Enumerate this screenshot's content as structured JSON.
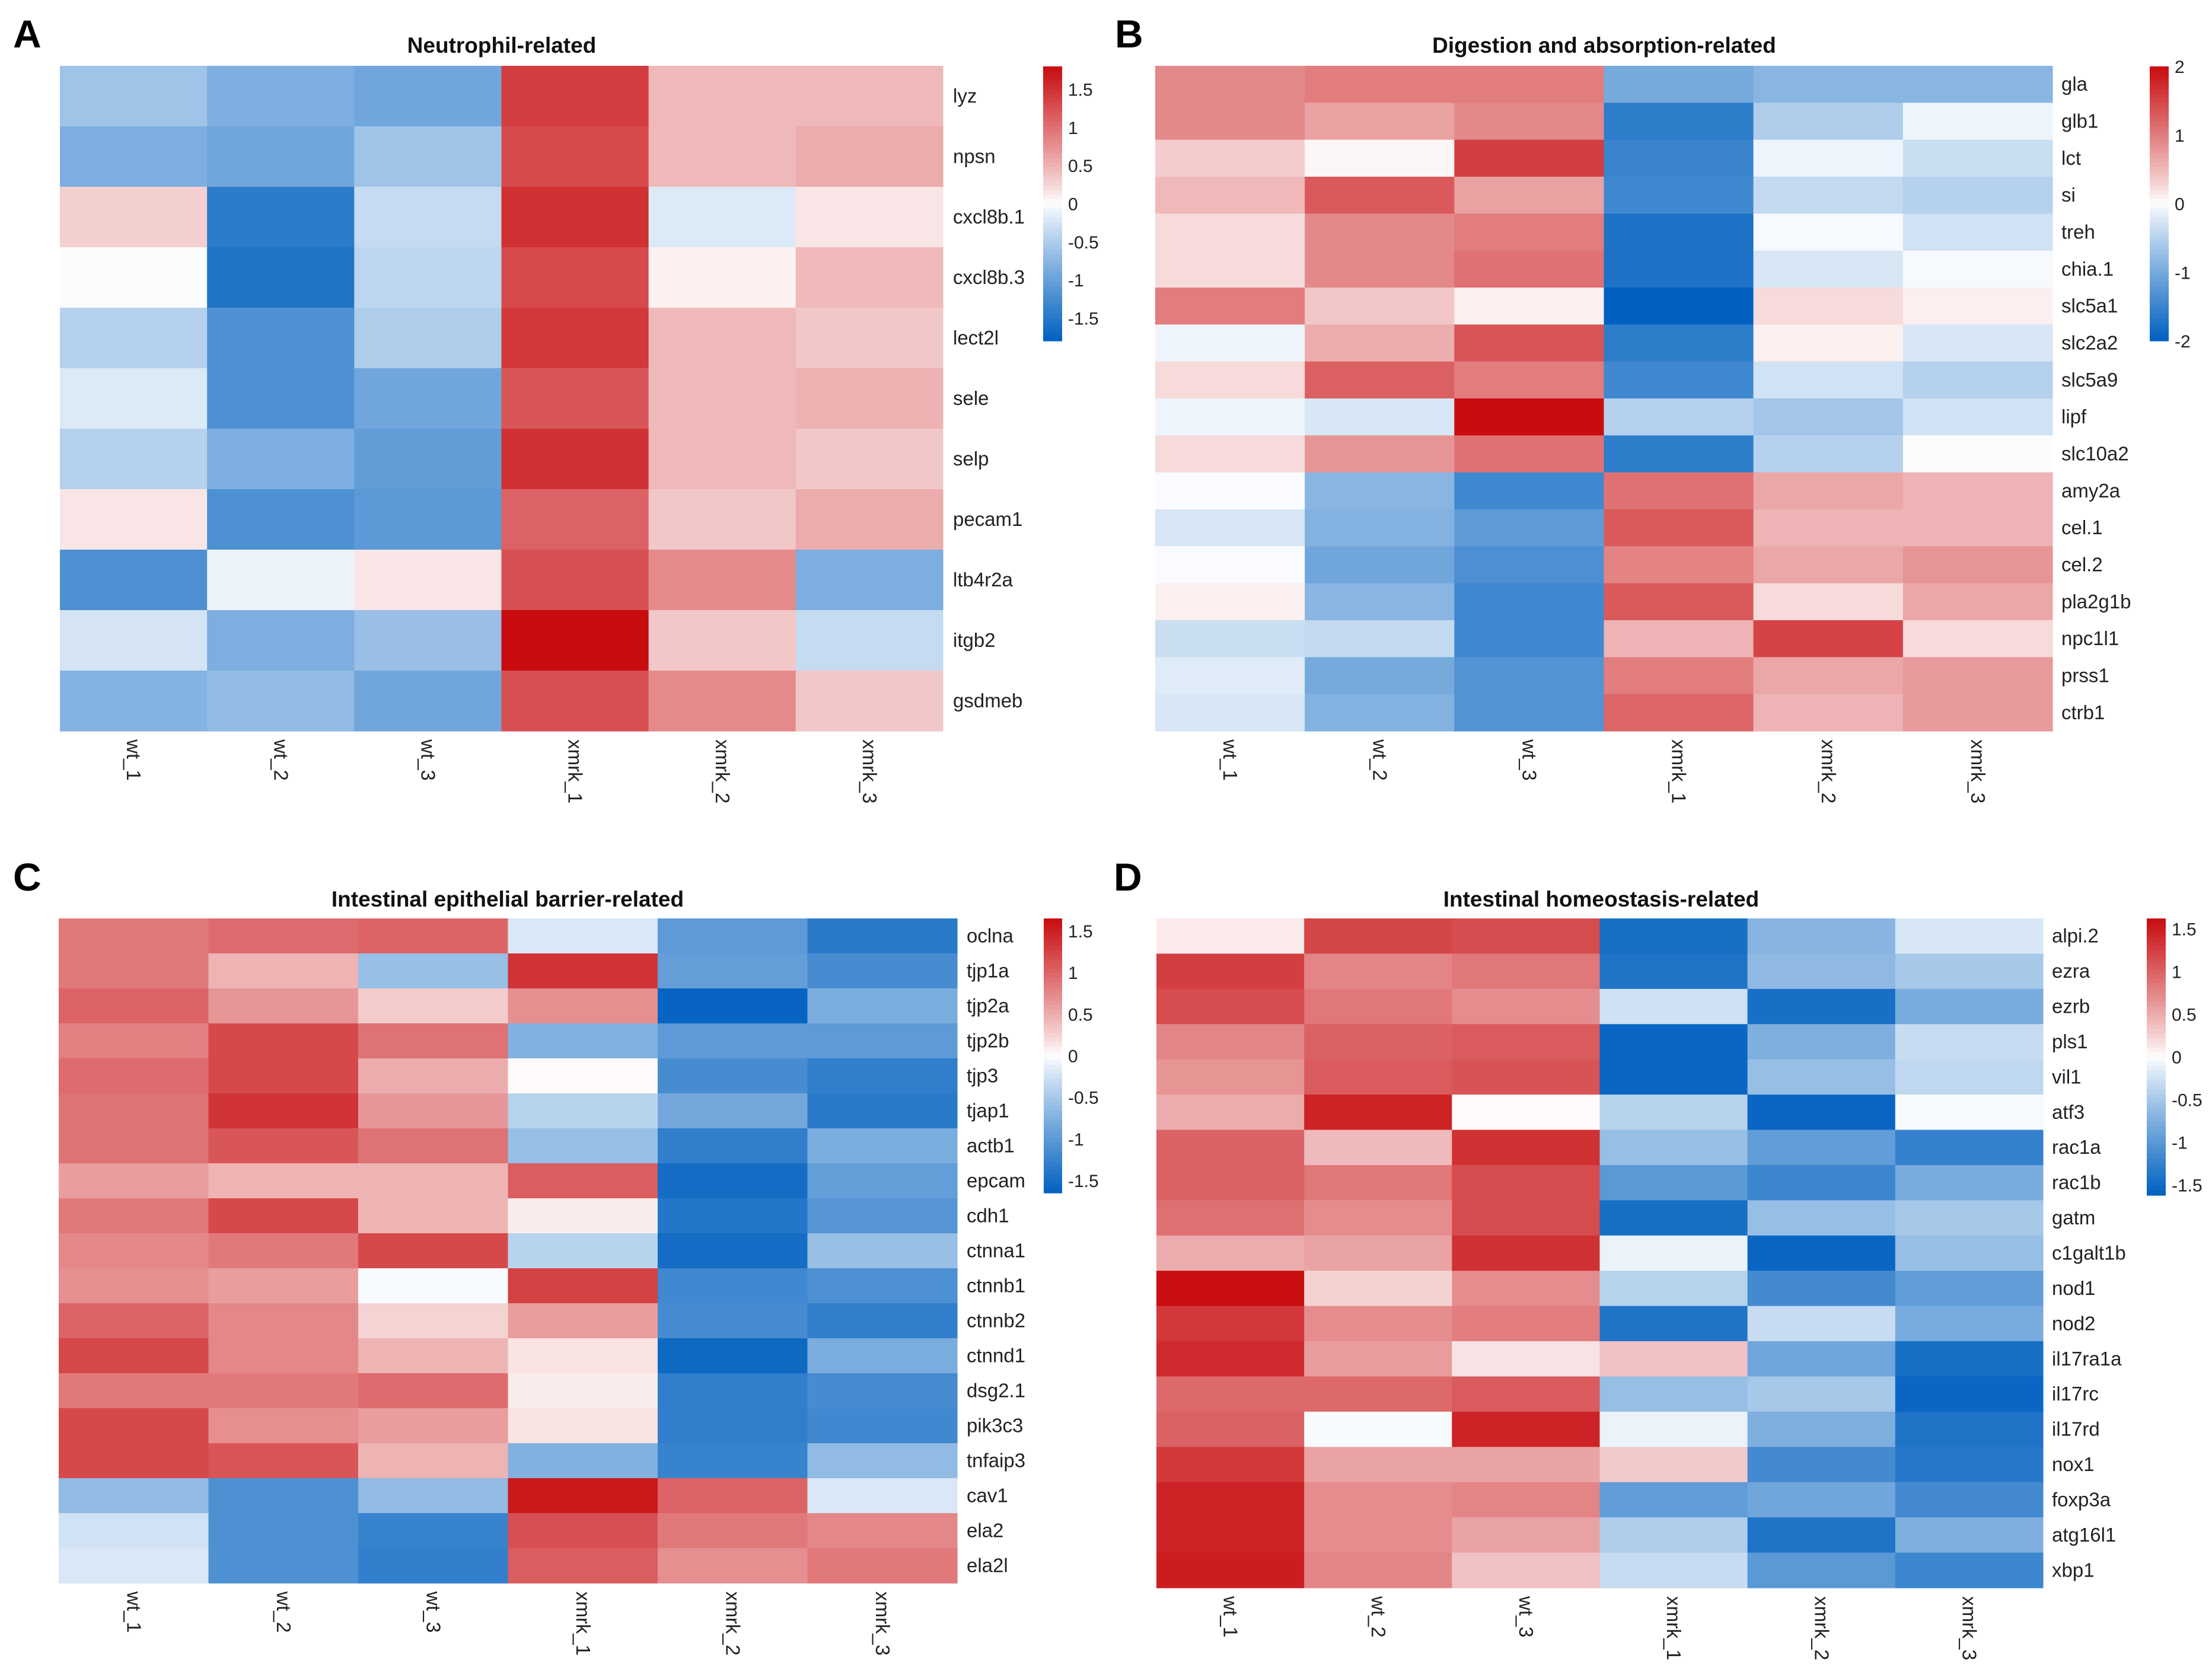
{
  "figure": {
    "panels": [
      {
        "letter": "A",
        "title": "Neutrophil-related"
      },
      {
        "letter": "B",
        "title": "Digestion and absorption-related"
      },
      {
        "letter": "C",
        "title": "Intestinal epithelial barrier-related"
      },
      {
        "letter": "D",
        "title": "Intestinal homeostasis-related"
      }
    ]
  },
  "chart_data": [
    {
      "type": "heatmap",
      "panel": "A",
      "title": "Neutrophil-related",
      "columns": [
        "wt_1",
        "wt_2",
        "wt_3",
        "xmrk_1",
        "xmrk_2",
        "xmrk_3"
      ],
      "rows": [
        "lyz",
        "npsn",
        "cxcl8b.1",
        "cxcl8b.3",
        "lect2l",
        "sele",
        "selp",
        "pecam1",
        "ltb4r2a",
        "itgb2",
        "gsdmeb"
      ],
      "values": [
        [
          -0.6,
          -0.85,
          -0.95,
          1.4,
          0.45,
          0.45
        ],
        [
          -0.85,
          -0.95,
          -0.6,
          1.3,
          0.45,
          0.55
        ],
        [
          0.3,
          -1.45,
          -0.35,
          1.5,
          -0.2,
          0.15
        ],
        [
          -0.02,
          -1.55,
          -0.4,
          1.3,
          0.08,
          0.45
        ],
        [
          -0.45,
          -1.2,
          -0.5,
          1.45,
          0.45,
          0.35
        ],
        [
          -0.2,
          -1.2,
          -0.95,
          1.2,
          0.45,
          0.5
        ],
        [
          -0.45,
          -0.85,
          -1.05,
          1.5,
          0.45,
          0.35
        ],
        [
          0.15,
          -1.2,
          -1.1,
          1.1,
          0.35,
          0.55
        ],
        [
          -1.2,
          -0.1,
          0.15,
          1.25,
          0.8,
          -0.85
        ],
        [
          -0.25,
          -0.85,
          -0.65,
          1.8,
          0.35,
          -0.35
        ],
        [
          -0.8,
          -0.7,
          -0.95,
          1.25,
          0.8,
          0.35
        ]
      ],
      "color_range": [
        -1.8,
        1.8
      ],
      "colorbar_ticks": [
        1.5,
        1,
        0.5,
        0,
        -0.5,
        -1,
        -1.5
      ],
      "colorbar_tick_labels": [
        "1.5",
        "1",
        "0.5",
        "0",
        "-0.5",
        "-1",
        "-1.5"
      ],
      "colors": {
        "low": "#0060c0",
        "mid": "#ffffff",
        "high": "#c80c0f"
      }
    },
    {
      "type": "heatmap",
      "panel": "B",
      "title": "Digestion and absorption-related",
      "columns": [
        "wt_1",
        "wt_2",
        "wt_3",
        "xmrk_1",
        "xmrk_2",
        "xmrk_3"
      ],
      "rows": [
        "gla",
        "glb1",
        "lct",
        "si",
        "treh",
        "chia.1",
        "slc5a1",
        "slc2a2",
        "slc5a9",
        "lipf",
        "slc10a2",
        "amy2a",
        "cel.1",
        "cel.2",
        "pla2g1b",
        "npc1l1",
        "prss1",
        "ctrb1"
      ],
      "values": [
        [
          0.9,
          1.0,
          1.0,
          -1.0,
          -0.85,
          -0.85
        ],
        [
          0.9,
          0.7,
          0.9,
          -1.6,
          -0.55,
          -0.1
        ],
        [
          0.35,
          0.05,
          1.55,
          -1.5,
          -0.1,
          -0.35
        ],
        [
          0.5,
          1.3,
          0.7,
          -1.45,
          -0.4,
          -0.5
        ],
        [
          0.25,
          0.9,
          1.0,
          -1.75,
          -0.05,
          -0.3
        ],
        [
          0.25,
          0.9,
          1.1,
          -1.75,
          -0.25,
          -0.05
        ],
        [
          1.0,
          0.4,
          0.1,
          -2.0,
          0.25,
          0.1
        ],
        [
          -0.1,
          0.6,
          1.35,
          -1.6,
          0.1,
          -0.25
        ],
        [
          0.25,
          1.25,
          1.0,
          -1.45,
          -0.3,
          -0.5
        ],
        [
          -0.1,
          -0.25,
          2.0,
          -0.5,
          -0.65,
          -0.3
        ],
        [
          0.25,
          0.8,
          1.1,
          -1.6,
          -0.5,
          0.02
        ],
        [
          -0.03,
          -0.85,
          -1.45,
          1.1,
          0.65,
          0.55
        ],
        [
          -0.25,
          -0.9,
          -1.2,
          1.3,
          0.55,
          0.55
        ],
        [
          -0.03,
          -1.05,
          -1.35,
          0.95,
          0.65,
          0.8
        ],
        [
          0.1,
          -0.85,
          -1.45,
          1.3,
          0.25,
          0.65
        ],
        [
          -0.35,
          -0.4,
          -1.45,
          0.55,
          1.5,
          0.25
        ],
        [
          -0.2,
          -1.0,
          -1.3,
          1.0,
          0.65,
          0.75
        ],
        [
          -0.25,
          -0.9,
          -1.3,
          1.2,
          0.55,
          0.75
        ]
      ],
      "color_range": [
        -2,
        2
      ],
      "colorbar_ticks": [
        2,
        1,
        0,
        -1,
        -2
      ],
      "colorbar_tick_labels": [
        "2",
        "1",
        "0",
        "-1",
        "-2"
      ],
      "colors": {
        "low": "#0060c0",
        "mid": "#ffffff",
        "high": "#c80c0f"
      }
    },
    {
      "type": "heatmap",
      "panel": "C",
      "title": "Intestinal epithelial barrier-related",
      "columns": [
        "wt_1",
        "wt_2",
        "wt_3",
        "xmrk_1",
        "xmrk_2",
        "xmrk_3"
      ],
      "rows": [
        "oclna",
        "tjp1a",
        "tjp2a",
        "tjp2b",
        "tjp3",
        "tjap1",
        "actb1",
        "epcam",
        "cdh1",
        "ctnna1",
        "ctnnb1",
        "ctnnb2",
        "ctnnd1",
        "dsg2.1",
        "pik3c3",
        "tnfaip3",
        "cav1",
        "ela2",
        "ela2l"
      ],
      "values": [
        [
          0.85,
          0.95,
          1.0,
          -0.2,
          -1.0,
          -1.35
        ],
        [
          0.85,
          0.45,
          -0.6,
          1.35,
          -0.95,
          -1.15
        ],
        [
          1.0,
          0.65,
          0.3,
          0.7,
          -1.6,
          -0.8
        ],
        [
          0.8,
          1.2,
          0.9,
          -0.75,
          -1.0,
          -1.0
        ],
        [
          0.95,
          1.2,
          0.5,
          0.02,
          -1.15,
          -1.3
        ],
        [
          0.9,
          1.35,
          0.65,
          -0.4,
          -0.85,
          -1.35
        ],
        [
          0.9,
          1.1,
          0.9,
          -0.6,
          -1.3,
          -0.8
        ],
        [
          0.6,
          0.45,
          0.45,
          1.05,
          -1.5,
          -0.95
        ],
        [
          0.85,
          1.2,
          0.45,
          0.1,
          -1.4,
          -1.05
        ],
        [
          0.75,
          0.85,
          1.2,
          -0.4,
          -1.5,
          -0.6
        ],
        [
          0.7,
          0.6,
          -0.03,
          1.25,
          -1.2,
          -1.1
        ],
        [
          1.0,
          0.75,
          0.25,
          0.6,
          -1.15,
          -1.3
        ],
        [
          1.2,
          0.75,
          0.45,
          0.15,
          -1.55,
          -0.8
        ],
        [
          0.85,
          0.85,
          0.95,
          0.1,
          -1.3,
          -1.15
        ],
        [
          1.2,
          0.7,
          0.6,
          0.15,
          -1.3,
          -1.2
        ],
        [
          1.2,
          1.1,
          0.45,
          -0.75,
          -1.25,
          -0.65
        ],
        [
          -0.65,
          -1.1,
          -0.65,
          1.55,
          1.0,
          -0.2
        ],
        [
          -0.25,
          -1.1,
          -1.25,
          1.15,
          0.85,
          0.75
        ],
        [
          -0.2,
          -1.1,
          -1.3,
          1.05,
          0.7,
          0.85
        ]
      ],
      "color_range": [
        -1.65,
        1.65
      ],
      "colorbar_ticks": [
        1.5,
        1,
        0.5,
        0,
        -0.5,
        -1,
        -1.5
      ],
      "colorbar_tick_labels": [
        "1.5",
        "1",
        "0.5",
        "0",
        "-0.5",
        "-1",
        "-1.5"
      ],
      "colors": {
        "low": "#0060c0",
        "mid": "#ffffff",
        "high": "#c80c0f"
      }
    },
    {
      "type": "heatmap",
      "panel": "D",
      "title": "Intestinal homeostasis-related",
      "columns": [
        "wt_1",
        "wt_2",
        "wt_3",
        "xmrk_1",
        "xmrk_2",
        "xmrk_3"
      ],
      "rows": [
        "alpi.2",
        "ezra",
        "ezrb",
        "pls1",
        "vil1",
        "atf3",
        "rac1a",
        "rac1b",
        "gatm",
        "c1galt1b",
        "nod1",
        "nod2",
        "il17ra1a",
        "il17rc",
        "il17rd",
        "nox1",
        "foxp3a",
        "atg16l1",
        "xbp1"
      ],
      "values": [
        [
          0.1,
          1.2,
          1.15,
          -1.45,
          -0.7,
          -0.2
        ],
        [
          1.25,
          0.75,
          0.85,
          -1.4,
          -0.65,
          -0.5
        ],
        [
          1.15,
          0.85,
          0.7,
          -0.25,
          -1.45,
          -0.8
        ],
        [
          0.75,
          1.0,
          1.05,
          -1.55,
          -0.75,
          -0.3
        ],
        [
          0.65,
          1.05,
          1.1,
          -1.55,
          -0.6,
          -0.35
        ],
        [
          0.5,
          1.45,
          0.02,
          -0.4,
          -1.55,
          -0.03
        ],
        [
          1.0,
          0.4,
          1.35,
          -0.6,
          -0.95,
          -1.25
        ],
        [
          1.0,
          0.85,
          1.15,
          -1.0,
          -1.2,
          -0.8
        ],
        [
          0.9,
          0.7,
          1.15,
          -1.45,
          -0.6,
          -0.5
        ],
        [
          0.5,
          0.55,
          1.35,
          -0.1,
          -1.55,
          -0.6
        ],
        [
          1.6,
          0.25,
          0.7,
          -0.4,
          -1.15,
          -0.95
        ],
        [
          1.3,
          0.7,
          0.8,
          -1.4,
          -0.3,
          -0.8
        ],
        [
          1.4,
          0.6,
          0.15,
          0.35,
          -0.85,
          -1.45
        ],
        [
          0.95,
          0.95,
          1.05,
          -0.6,
          -0.5,
          -1.55
        ],
        [
          1.0,
          -0.03,
          1.45,
          -0.1,
          -0.75,
          -1.4
        ],
        [
          1.3,
          0.55,
          0.55,
          0.3,
          -1.15,
          -1.35
        ],
        [
          1.45,
          0.7,
          0.75,
          -0.95,
          -0.85,
          -1.15
        ],
        [
          1.45,
          0.7,
          0.55,
          -0.45,
          -1.4,
          -0.75
        ],
        [
          1.5,
          0.75,
          0.35,
          -0.3,
          -1.0,
          -1.2
        ]
      ],
      "color_range": [
        -1.62,
        1.62
      ],
      "colorbar_ticks": [
        1.5,
        1,
        0.5,
        0,
        -0.5,
        -1,
        -1.5
      ],
      "colorbar_tick_labels": [
        "1.5",
        "1",
        "0.5",
        "0",
        "-0.5",
        "-1",
        "-1.5"
      ],
      "colors": {
        "low": "#0060c0",
        "mid": "#ffffff",
        "high": "#c80c0f"
      }
    }
  ]
}
